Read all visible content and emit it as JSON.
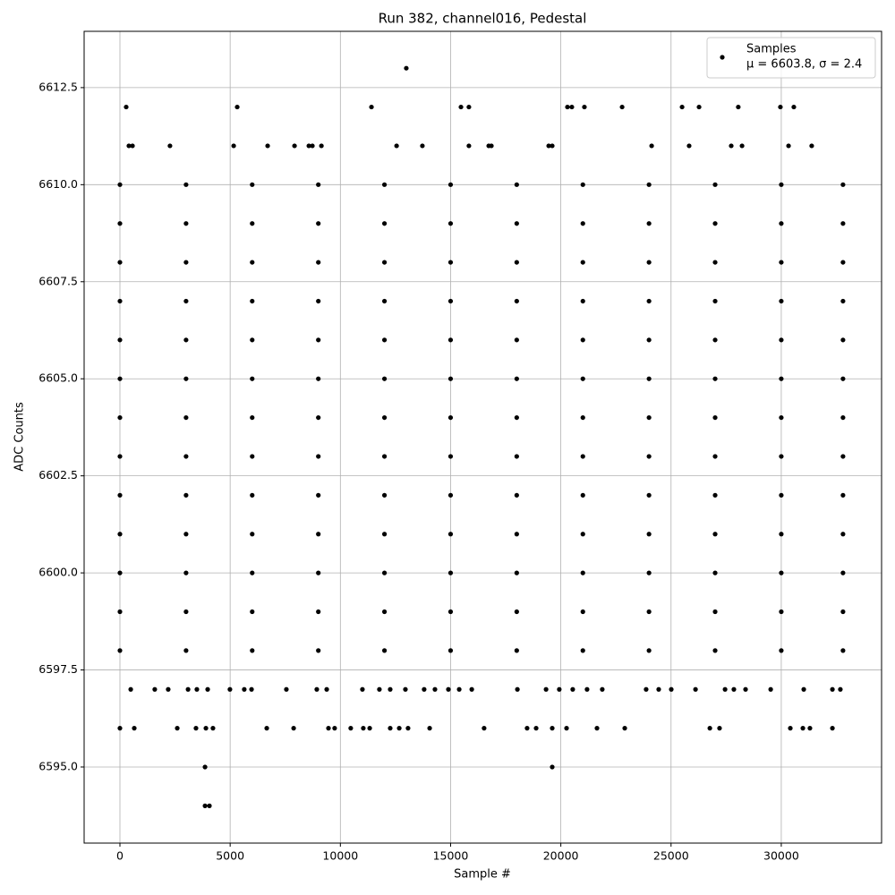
{
  "chart_data": {
    "type": "scatter",
    "title": "Run 382, channel016, Pedestal",
    "x_label": "Sample #",
    "y_label": "ADC Counts",
    "xlim": [
      -1624,
      34550
    ],
    "ylim": [
      6593.04,
      6613.95
    ],
    "xticks": [
      0,
      5000,
      10000,
      15000,
      20000,
      25000,
      30000
    ],
    "yticks": [
      {
        "value": 6595,
        "label": "6595.0"
      },
      6597.5,
      {
        "value": 6600,
        "label": "6600.0"
      },
      6602.5,
      {
        "value": 6605,
        "label": "6605.0"
      },
      6607.5,
      {
        "value": 6610,
        "label": "6610.0"
      },
      6612.5
    ],
    "grid": true,
    "legend": "upper right",
    "series": [
      {
        "name": "Samples",
        "stats": "μ = 6603.8, σ = 2.4",
        "color": "#000000",
        "x": [
          0,
          3000,
          6000,
          9000,
          12000,
          15000,
          18000,
          21000,
          24000,
          27000,
          30000,
          32800,
          0,
          3000,
          6000,
          9000,
          12000,
          15000,
          18000,
          21000,
          24000,
          27000,
          30000,
          32800,
          0,
          3000,
          6000,
          9000,
          12000,
          15000,
          18000,
          21000,
          24000,
          27000,
          30000,
          32800,
          0,
          3000,
          6000,
          9000,
          12000,
          15000,
          18000,
          21000,
          24000,
          27000,
          30000,
          32800,
          0,
          3000,
          6000,
          9000,
          12000,
          15000,
          18000,
          21000,
          24000,
          27000,
          30000,
          32800,
          0,
          3000,
          6000,
          9000,
          12000,
          15000,
          18000,
          21000,
          24000,
          27000,
          30000,
          32800,
          0,
          3000,
          6000,
          9000,
          12000,
          15000,
          18000,
          21000,
          24000,
          27000,
          30000,
          32800,
          0,
          3000,
          6000,
          9000,
          12000,
          15000,
          18000,
          21000,
          24000,
          27000,
          30000,
          32800,
          0,
          3000,
          6000,
          9000,
          12000,
          15000,
          18000,
          21000,
          24000,
          27000,
          30000,
          32800,
          0,
          3000,
          6000,
          9000,
          12000,
          15000,
          18000,
          21000,
          24000,
          27000,
          30000,
          32800,
          0,
          3000,
          6000,
          9000,
          12000,
          15000,
          18000,
          21000,
          24000,
          27000,
          30000,
          32800,
          0,
          3000,
          6000,
          9000,
          12000,
          15000,
          18000,
          21000,
          24000,
          27000,
          30000,
          32800,
          0,
          3000,
          6000,
          9000,
          12000,
          15000,
          18000,
          21000,
          24000,
          27000,
          30000,
          32800,
          12990,
          284,
          5320,
          11410,
          15470,
          15830,
          20300,
          20500,
          21070,
          22780,
          25500,
          26270,
          28050,
          29960,
          30570,
          406,
          570,
          2270,
          5160,
          6700,
          7920,
          8570,
          8730,
          9140,
          12550,
          13720,
          15830,
          16730,
          16850,
          19450,
          19610,
          24120,
          25820,
          27730,
          28220,
          30330,
          31380,
          490,
          1580,
          2190,
          3090,
          3490,
          3980,
          4990,
          5640,
          5970,
          7550,
          8930,
          9380,
          11000,
          11770,
          12260,
          12950,
          13800,
          14290,
          14900,
          15390,
          15960,
          18030,
          19330,
          19930,
          20540,
          21190,
          21880,
          23870,
          24440,
          25010,
          26110,
          27450,
          27850,
          28380,
          29520,
          31020,
          32320,
          32680,
          0,
          650,
          2600,
          3450,
          3900,
          4220,
          6660,
          7880,
          9460,
          9740,
          10470,
          11040,
          11330,
          12260,
          12670,
          13070,
          14050,
          16520,
          18470,
          18880,
          19610,
          20260,
          21640,
          22900,
          26760,
          27200,
          30410,
          30980,
          31300,
          32320,
          3860,
          19610,
          3860,
          4060
        ],
        "values": [
          6598,
          6598,
          6598,
          6598,
          6598,
          6598,
          6598,
          6598,
          6598,
          6598,
          6598,
          6598,
          6599,
          6599,
          6599,
          6599,
          6599,
          6599,
          6599,
          6599,
          6599,
          6599,
          6599,
          6599,
          6600,
          6600,
          6600,
          6600,
          6600,
          6600,
          6600,
          6600,
          6600,
          6600,
          6600,
          6600,
          6601,
          6601,
          6601,
          6601,
          6601,
          6601,
          6601,
          6601,
          6601,
          6601,
          6601,
          6601,
          6602,
          6602,
          6602,
          6602,
          6602,
          6602,
          6602,
          6602,
          6602,
          6602,
          6602,
          6602,
          6603,
          6603,
          6603,
          6603,
          6603,
          6603,
          6603,
          6603,
          6603,
          6603,
          6603,
          6603,
          6604,
          6604,
          6604,
          6604,
          6604,
          6604,
          6604,
          6604,
          6604,
          6604,
          6604,
          6604,
          6605,
          6605,
          6605,
          6605,
          6605,
          6605,
          6605,
          6605,
          6605,
          6605,
          6605,
          6605,
          6606,
          6606,
          6606,
          6606,
          6606,
          6606,
          6606,
          6606,
          6606,
          6606,
          6606,
          6606,
          6607,
          6607,
          6607,
          6607,
          6607,
          6607,
          6607,
          6607,
          6607,
          6607,
          6607,
          6607,
          6608,
          6608,
          6608,
          6608,
          6608,
          6608,
          6608,
          6608,
          6608,
          6608,
          6608,
          6608,
          6609,
          6609,
          6609,
          6609,
          6609,
          6609,
          6609,
          6609,
          6609,
          6609,
          6609,
          6609,
          6610,
          6610,
          6610,
          6610,
          6610,
          6610,
          6610,
          6610,
          6610,
          6610,
          6610,
          6610,
          6613,
          6612,
          6612,
          6612,
          6612,
          6612,
          6612,
          6612,
          6612,
          6612,
          6612,
          6612,
          6612,
          6612,
          6612,
          6611,
          6611,
          6611,
          6611,
          6611,
          6611,
          6611,
          6611,
          6611,
          6611,
          6611,
          6611,
          6611,
          6611,
          6611,
          6611,
          6611,
          6611,
          6611,
          6611,
          6611,
          6611,
          6597,
          6597,
          6597,
          6597,
          6597,
          6597,
          6597,
          6597,
          6597,
          6597,
          6597,
          6597,
          6597,
          6597,
          6597,
          6597,
          6597,
          6597,
          6597,
          6597,
          6597,
          6597,
          6597,
          6597,
          6597,
          6597,
          6597,
          6597,
          6597,
          6597,
          6597,
          6597,
          6597,
          6597,
          6597,
          6597,
          6597,
          6597,
          6596,
          6596,
          6596,
          6596,
          6596,
          6596,
          6596,
          6596,
          6596,
          6596,
          6596,
          6596,
          6596,
          6596,
          6596,
          6596,
          6596,
          6596,
          6596,
          6596,
          6596,
          6596,
          6596,
          6596,
          6596,
          6596,
          6596,
          6596,
          6596,
          6596,
          6595,
          6595,
          6594,
          6594
        ]
      }
    ]
  }
}
